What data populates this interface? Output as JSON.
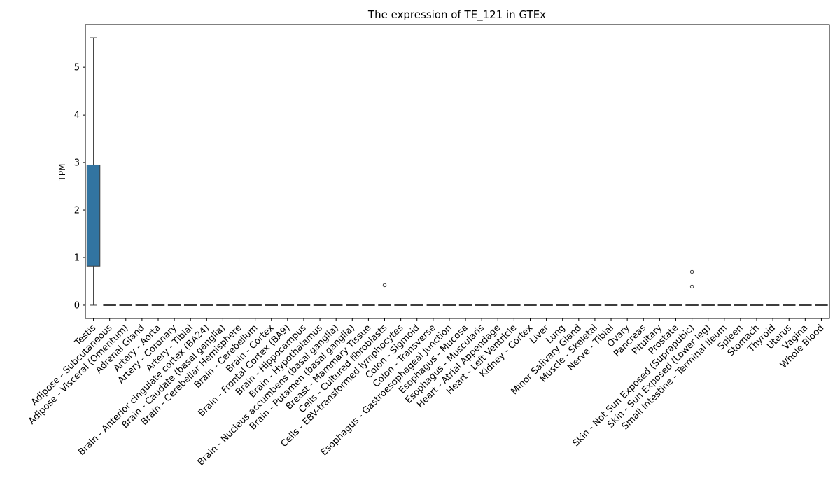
{
  "chart_data": {
    "type": "box",
    "title": "The expression of TE_121 in GTEx",
    "xlabel": "",
    "ylabel": "TPM",
    "ylim": [
      -0.28,
      5.9
    ],
    "yticks": [
      0,
      1,
      2,
      3,
      4,
      5
    ],
    "box_color": "#3274a1",
    "grid": false,
    "categories": [
      "Testis",
      "Adipose - Subcutaneous",
      "Adipose - Visceral (Omentum)",
      "Adrenal Gland",
      "Artery - Aorta",
      "Artery - Coronary",
      "Artery - Tibial",
      "Brain - Anterior cingulate cortex (BA24)",
      "Brain - Caudate (basal ganglia)",
      "Brain - Cerebellar Hemisphere",
      "Brain - Cerebellum",
      "Brain - Cortex",
      "Brain - Frontal Cortex (BA9)",
      "Brain - Hippocampus",
      "Brain - Hypothalamus",
      "Brain - Nucleus accumbens (basal ganglia)",
      "Brain - Putamen (basal ganglia)",
      "Breast - Mammary Tissue",
      "Cells - Cultured fibroblasts",
      "Cells - EBV-transformed lymphocytes",
      "Colon - Sigmoid",
      "Colon - Transverse",
      "Esophagus - Gastroesophageal Junction",
      "Esophagus - Mucosa",
      "Esophagus - Muscularis",
      "Heart - Atrial Appendage",
      "Heart - Left Ventricle",
      "Kidney - Cortex",
      "Liver",
      "Lung",
      "Minor Salivary Gland",
      "Muscle - Skeletal",
      "Nerve - Tibial",
      "Ovary",
      "Pancreas",
      "Pituitary",
      "Prostate",
      "Skin - Not Sun Exposed (Suprapubic)",
      "Skin - Sun Exposed (Lower leg)",
      "Small Intestine - Terminal Ileum",
      "Spleen",
      "Stomach",
      "Thyroid",
      "Uterus",
      "Vagina",
      "Whole Blood"
    ],
    "boxes": [
      {
        "min": 0,
        "q1": 0.82,
        "median": 1.92,
        "q3": 2.95,
        "max": 5.62,
        "outliers": []
      },
      {
        "min": 0,
        "q1": 0,
        "median": 0,
        "q3": 0,
        "max": 0,
        "outliers": []
      },
      {
        "min": 0,
        "q1": 0,
        "median": 0,
        "q3": 0,
        "max": 0,
        "outliers": []
      },
      {
        "min": 0,
        "q1": 0,
        "median": 0,
        "q3": 0,
        "max": 0,
        "outliers": []
      },
      {
        "min": 0,
        "q1": 0,
        "median": 0,
        "q3": 0,
        "max": 0,
        "outliers": []
      },
      {
        "min": 0,
        "q1": 0,
        "median": 0,
        "q3": 0,
        "max": 0,
        "outliers": []
      },
      {
        "min": 0,
        "q1": 0,
        "median": 0,
        "q3": 0,
        "max": 0,
        "outliers": []
      },
      {
        "min": 0,
        "q1": 0,
        "median": 0,
        "q3": 0,
        "max": 0,
        "outliers": []
      },
      {
        "min": 0,
        "q1": 0,
        "median": 0,
        "q3": 0,
        "max": 0,
        "outliers": []
      },
      {
        "min": 0,
        "q1": 0,
        "median": 0,
        "q3": 0,
        "max": 0,
        "outliers": []
      },
      {
        "min": 0,
        "q1": 0,
        "median": 0,
        "q3": 0,
        "max": 0,
        "outliers": []
      },
      {
        "min": 0,
        "q1": 0,
        "median": 0,
        "q3": 0,
        "max": 0,
        "outliers": []
      },
      {
        "min": 0,
        "q1": 0,
        "median": 0,
        "q3": 0,
        "max": 0,
        "outliers": []
      },
      {
        "min": 0,
        "q1": 0,
        "median": 0,
        "q3": 0,
        "max": 0,
        "outliers": []
      },
      {
        "min": 0,
        "q1": 0,
        "median": 0,
        "q3": 0,
        "max": 0,
        "outliers": []
      },
      {
        "min": 0,
        "q1": 0,
        "median": 0,
        "q3": 0,
        "max": 0,
        "outliers": []
      },
      {
        "min": 0,
        "q1": 0,
        "median": 0,
        "q3": 0,
        "max": 0,
        "outliers": []
      },
      {
        "min": 0,
        "q1": 0,
        "median": 0,
        "q3": 0,
        "max": 0,
        "outliers": []
      },
      {
        "min": 0,
        "q1": 0,
        "median": 0,
        "q3": 0,
        "max": 0,
        "outliers": [
          0.42
        ]
      },
      {
        "min": 0,
        "q1": 0,
        "median": 0,
        "q3": 0,
        "max": 0,
        "outliers": []
      },
      {
        "min": 0,
        "q1": 0,
        "median": 0,
        "q3": 0,
        "max": 0,
        "outliers": []
      },
      {
        "min": 0,
        "q1": 0,
        "median": 0,
        "q3": 0,
        "max": 0,
        "outliers": []
      },
      {
        "min": 0,
        "q1": 0,
        "median": 0,
        "q3": 0,
        "max": 0,
        "outliers": []
      },
      {
        "min": 0,
        "q1": 0,
        "median": 0,
        "q3": 0,
        "max": 0,
        "outliers": []
      },
      {
        "min": 0,
        "q1": 0,
        "median": 0,
        "q3": 0,
        "max": 0,
        "outliers": []
      },
      {
        "min": 0,
        "q1": 0,
        "median": 0,
        "q3": 0,
        "max": 0,
        "outliers": []
      },
      {
        "min": 0,
        "q1": 0,
        "median": 0,
        "q3": 0,
        "max": 0,
        "outliers": []
      },
      {
        "min": 0,
        "q1": 0,
        "median": 0,
        "q3": 0,
        "max": 0,
        "outliers": []
      },
      {
        "min": 0,
        "q1": 0,
        "median": 0,
        "q3": 0,
        "max": 0,
        "outliers": []
      },
      {
        "min": 0,
        "q1": 0,
        "median": 0,
        "q3": 0,
        "max": 0,
        "outliers": []
      },
      {
        "min": 0,
        "q1": 0,
        "median": 0,
        "q3": 0,
        "max": 0,
        "outliers": []
      },
      {
        "min": 0,
        "q1": 0,
        "median": 0,
        "q3": 0,
        "max": 0,
        "outliers": []
      },
      {
        "min": 0,
        "q1": 0,
        "median": 0,
        "q3": 0,
        "max": 0,
        "outliers": []
      },
      {
        "min": 0,
        "q1": 0,
        "median": 0,
        "q3": 0,
        "max": 0,
        "outliers": []
      },
      {
        "min": 0,
        "q1": 0,
        "median": 0,
        "q3": 0,
        "max": 0,
        "outliers": []
      },
      {
        "min": 0,
        "q1": 0,
        "median": 0,
        "q3": 0,
        "max": 0,
        "outliers": []
      },
      {
        "min": 0,
        "q1": 0,
        "median": 0,
        "q3": 0,
        "max": 0,
        "outliers": []
      },
      {
        "min": 0,
        "q1": 0,
        "median": 0,
        "q3": 0,
        "max": 0,
        "outliers": [
          0.7,
          0.39
        ]
      },
      {
        "min": 0,
        "q1": 0,
        "median": 0,
        "q3": 0,
        "max": 0,
        "outliers": []
      },
      {
        "min": 0,
        "q1": 0,
        "median": 0,
        "q3": 0,
        "max": 0,
        "outliers": []
      },
      {
        "min": 0,
        "q1": 0,
        "median": 0,
        "q3": 0,
        "max": 0,
        "outliers": []
      },
      {
        "min": 0,
        "q1": 0,
        "median": 0,
        "q3": 0,
        "max": 0,
        "outliers": []
      },
      {
        "min": 0,
        "q1": 0,
        "median": 0,
        "q3": 0,
        "max": 0,
        "outliers": []
      },
      {
        "min": 0,
        "q1": 0,
        "median": 0,
        "q3": 0,
        "max": 0,
        "outliers": []
      },
      {
        "min": 0,
        "q1": 0,
        "median": 0,
        "q3": 0,
        "max": 0,
        "outliers": []
      },
      {
        "min": 0,
        "q1": 0,
        "median": 0,
        "q3": 0,
        "max": 0,
        "outliers": []
      }
    ]
  }
}
